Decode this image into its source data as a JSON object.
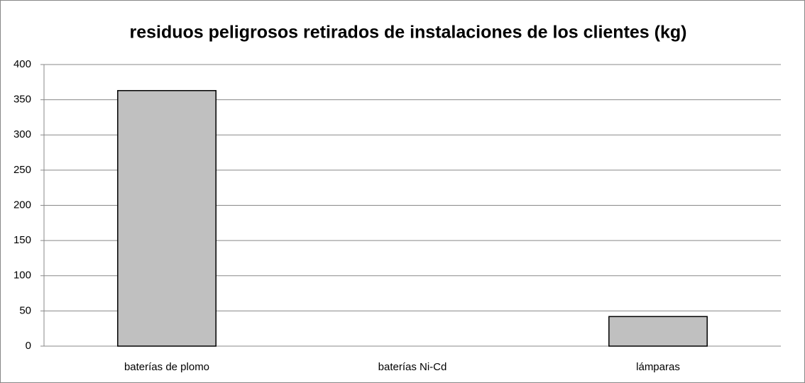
{
  "chart_data": {
    "type": "bar",
    "title": "residuos peligrosos retirados de instalaciones de los clientes (kg)",
    "categories": [
      "baterías de plomo",
      "baterías Ni-Cd",
      "lámparas"
    ],
    "values": [
      363,
      0,
      42
    ],
    "color": "#c0c0c0",
    "ylim": [
      0,
      400
    ],
    "yticks": [
      0,
      50,
      100,
      150,
      200,
      250,
      300,
      350,
      400
    ],
    "grid": true
  }
}
